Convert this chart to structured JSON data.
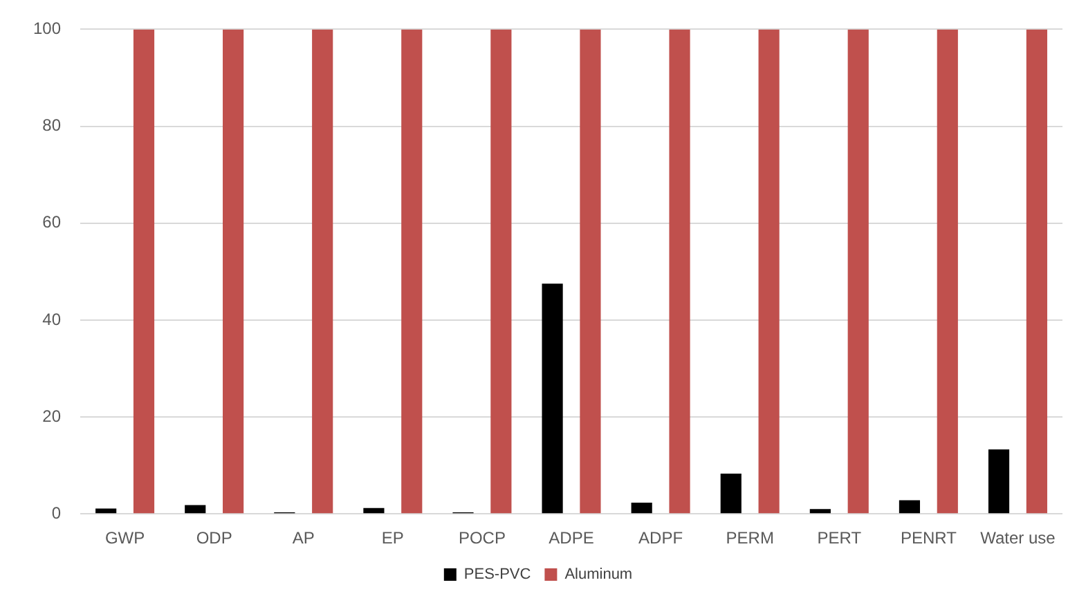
{
  "chart_data": {
    "type": "bar",
    "categories": [
      "GWP",
      "ODP",
      "AP",
      "EP",
      "POCP",
      "ADPE",
      "ADPF",
      "PERM",
      "PERT",
      "PENRT",
      "Water use"
    ],
    "series": [
      {
        "name": "PES-PVC",
        "color": "#000000",
        "values": [
          1.1,
          1.8,
          0.3,
          1.2,
          0.3,
          47.5,
          2.3,
          8.3,
          1.0,
          2.8,
          13.3
        ]
      },
      {
        "name": "Aluminum",
        "color": "#c0504d",
        "values": [
          100,
          100,
          100,
          100,
          100,
          100,
          100,
          100,
          100,
          100,
          100
        ]
      }
    ],
    "ylim": [
      0,
      100
    ],
    "yticks": [
      0,
      20,
      40,
      60,
      80,
      100
    ],
    "grid": "y",
    "legend": "bottom"
  }
}
